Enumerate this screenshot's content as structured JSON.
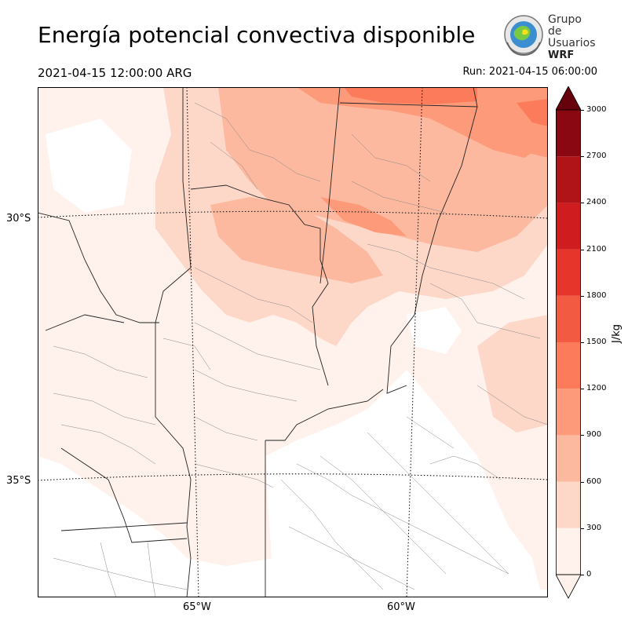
{
  "header": {
    "title": "Energía potencial convectiva disponible",
    "valid_time": "2021-04-15 12:00:00 ARG",
    "run_time": "Run: 2021-04-15 06:00:00"
  },
  "logo": {
    "line1": "Grupo de",
    "line2": "Usuarios",
    "line3": "WRF"
  },
  "map": {
    "latitude_labels": [
      "30°S",
      "35°S"
    ],
    "longitude_labels": [
      "65°W",
      "60°W"
    ]
  },
  "colorbar": {
    "unit": "J/kg",
    "tick_labels": [
      "0",
      "300",
      "600",
      "900",
      "1200",
      "1500",
      "1800",
      "2100",
      "2400",
      "2700",
      "3000"
    ],
    "colors": [
      "#fff1eb",
      "#fdd8c9",
      "#fcb99f",
      "#fc9a7a",
      "#fb7b5b",
      "#f35a42",
      "#e6352a",
      "#cf1c1f",
      "#b01318",
      "#8a0812",
      "#67000d"
    ]
  }
}
